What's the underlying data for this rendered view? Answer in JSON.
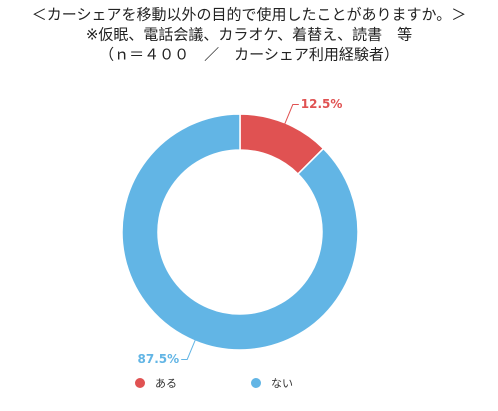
{
  "chart_data": {
    "type": "donut",
    "title": "＜カーシェアを移動以外の目的で使用したことがありますか。＞",
    "subtitle": [
      "※仮眠、電話会議、カラオケ、着替え、読書　等",
      "（ｎ＝４００　／　カーシェア利用経験者）"
    ],
    "categories": [
      "ある",
      "ない"
    ],
    "values": [
      12.5,
      87.5
    ],
    "value_labels": [
      "12.5%",
      "87.5%"
    ],
    "colors": [
      "#e05252",
      "#62b5e5"
    ]
  }
}
